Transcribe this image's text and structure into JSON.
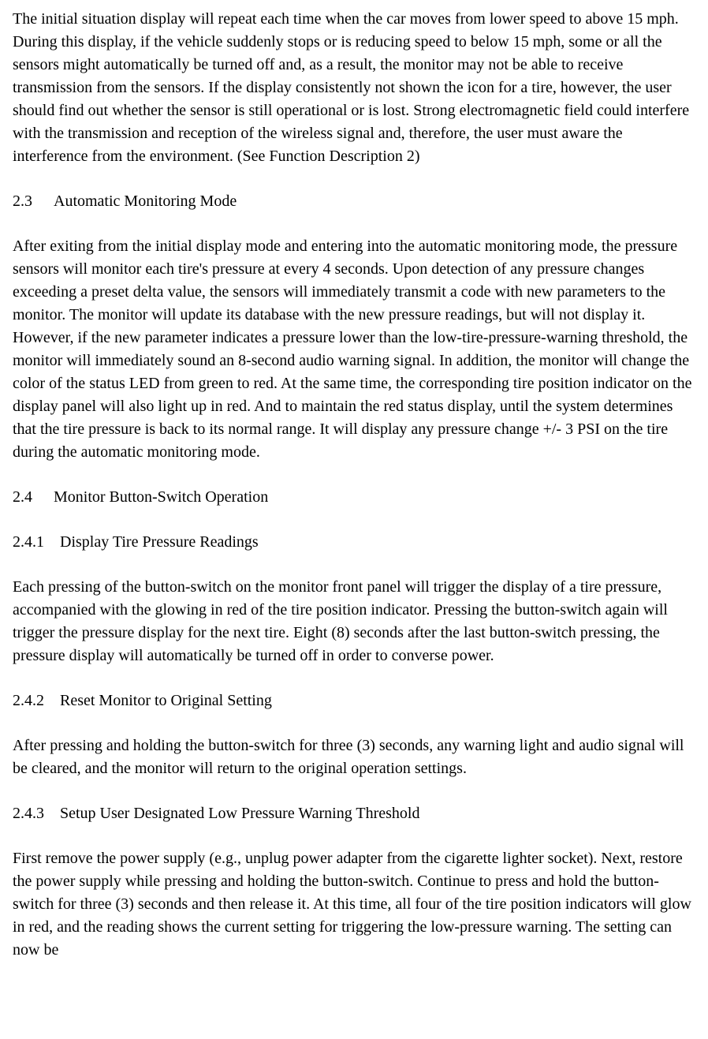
{
  "intro_para": "The initial situation display will repeat each time when the car moves from lower speed to above 15 mph. During this display, if the vehicle suddenly stops or is reducing speed to below 15 mph, some or all the sensors might automatically be turned off and, as a result, the monitor may not be able to receive transmission from the sensors. If the display consistently not shown the icon for a tire, however, the user should find out whether the sensor is still operational or is lost. Strong electromagnetic field could interfere with the transmission and reception of the wireless signal and, therefore, the user must aware the interference from the environment. (See Function Description 2)",
  "s23": {
    "num": "2.3",
    "title": "Automatic Monitoring Mode",
    "body": "After exiting from the initial display mode and entering into the automatic monitoring mode, the pressure sensors will monitor each tire's pressure at every 4 seconds. Upon detection of any pressure changes exceeding a preset delta value, the sensors will immediately transmit a code with new parameters to the monitor. The monitor will update its database with the new pressure readings, but will not display it. However, if the new parameter indicates a pressure lower than the low-tire-pressure-warning threshold, the monitor will immediately sound an 8-second audio warning signal. In addition, the monitor will change the color of the status LED from green to red. At the same time, the corresponding tire position indicator on the display panel will also light up in red. And to maintain the red status display, until the system determines that the tire pressure is back to its normal range. It will display any pressure change +/- 3 PSI on the tire during the automatic monitoring mode."
  },
  "s24": {
    "num": "2.4",
    "title": "Monitor Button-Switch Operation"
  },
  "s241": {
    "num": "2.4.1",
    "title": "Display Tire Pressure Readings",
    "body": "Each pressing of the button-switch on the monitor front panel will trigger the display of a tire pressure, accompanied with the glowing in red of the tire position indicator. Pressing the button-switch again will trigger the pressure display for the next tire. Eight (8) seconds after the last button-switch pressing, the pressure display will automatically be turned off in order to converse power."
  },
  "s242": {
    "num": "2.4.2",
    "title": "Reset Monitor to Original Setting",
    "body": "After pressing and holding the button-switch for three (3) seconds, any warning light and audio signal will be cleared, and the monitor will return to the original operation settings."
  },
  "s243": {
    "num": "2.4.3",
    "title": "Setup User Designated Low Pressure Warning Threshold",
    "body": "First remove the power supply (e.g., unplug power adapter from the cigarette lighter socket). Next, restore the power supply while pressing and holding the button-switch. Continue to press and hold the button-switch for three (3) seconds and then release it. At this time, all four of the tire position indicators will glow in red, and the reading shows the current setting for triggering the low-pressure warning. The setting can now be"
  }
}
